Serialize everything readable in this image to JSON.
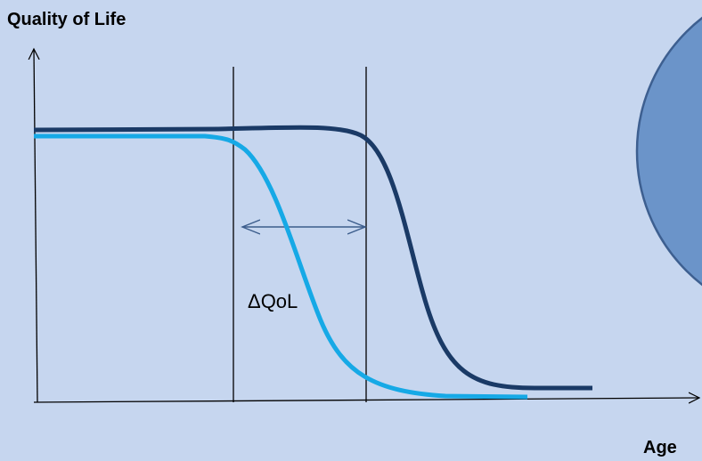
{
  "y_axis_label": "Quality of Life",
  "x_axis_label": "Age",
  "delta_label": "ΔQoL"
}
